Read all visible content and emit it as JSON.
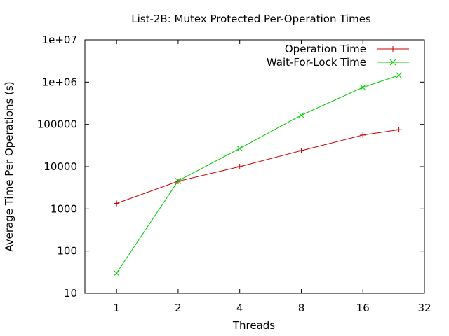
{
  "chart_data": {
    "type": "line",
    "title": "List-2B: Mutex Protected Per-Operation Times",
    "xlabel": "Threads",
    "ylabel": "Average Time Per Operations (s)",
    "xscale": "log2",
    "yscale": "log10",
    "xlim": [
      0.7,
      32
    ],
    "ylim": [
      10,
      10000000
    ],
    "xticks": [
      1,
      2,
      4,
      8,
      16,
      32
    ],
    "xtick_labels": [
      "1",
      "2",
      "4",
      "8",
      "16",
      "32"
    ],
    "yticks": [
      10,
      100,
      1000,
      10000,
      100000,
      1000000,
      10000000
    ],
    "ytick_labels": [
      "10",
      "100",
      "1000",
      "10000",
      "100000",
      "1e+06",
      "1e+07"
    ],
    "grid": false,
    "legend_position": "top-right",
    "series": [
      {
        "name": "Operation Time",
        "color": "#cc0000",
        "marker": "plus",
        "x": [
          1,
          2,
          4,
          8,
          16,
          24
        ],
        "y": [
          1350,
          4500,
          10000,
          24000,
          56000,
          75000
        ]
      },
      {
        "name": "Wait-For-Lock Time",
        "color": "#00cc00",
        "marker": "cross",
        "x": [
          1,
          2,
          4,
          8,
          16,
          24
        ],
        "y": [
          30,
          4600,
          27000,
          165000,
          750000,
          1450000
        ]
      }
    ]
  }
}
